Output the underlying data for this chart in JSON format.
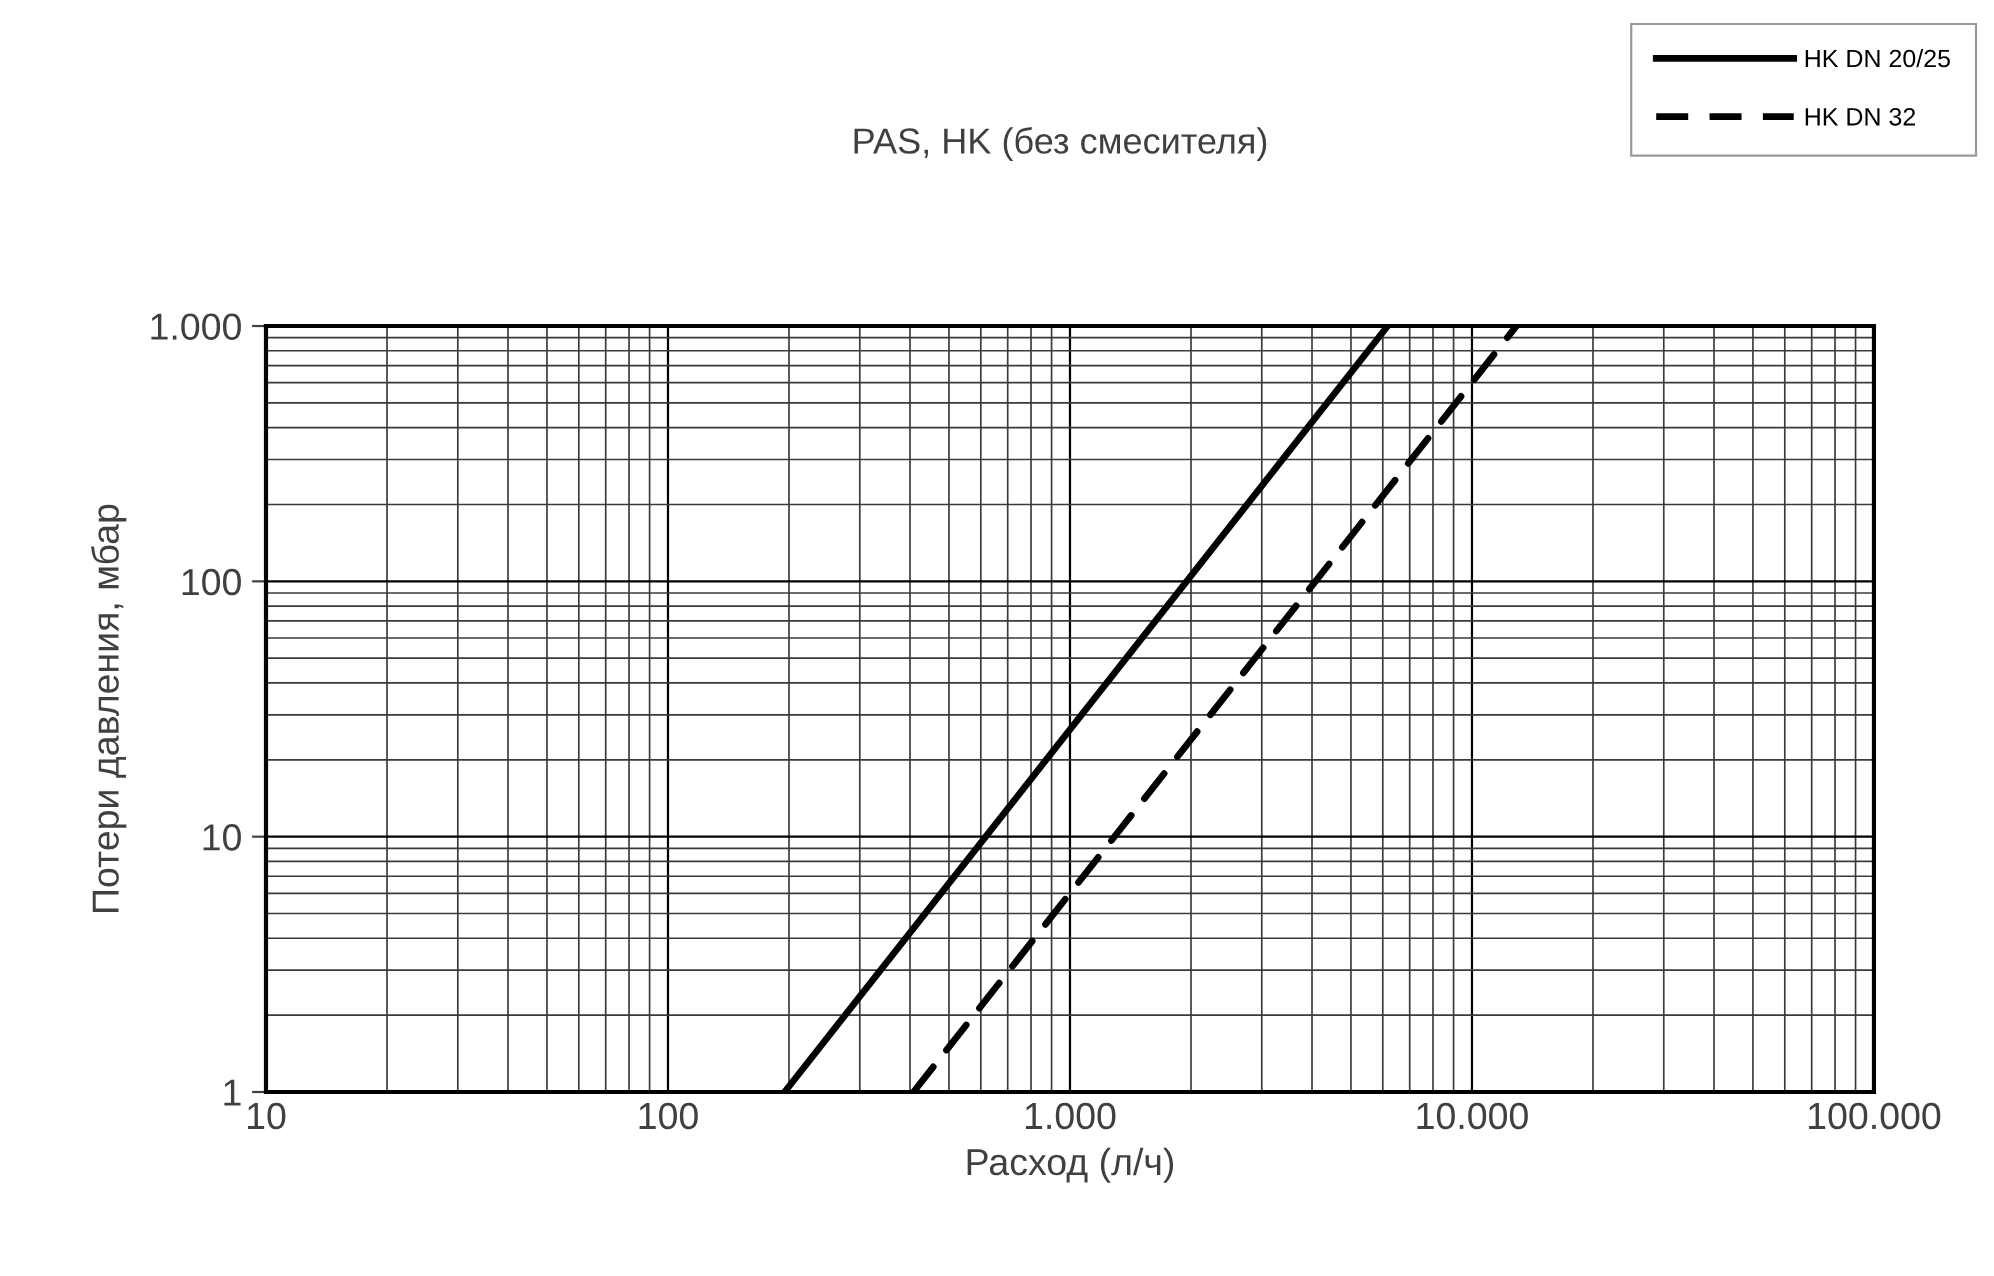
{
  "chart_data": {
    "type": "line",
    "title": "PAS, HK (без смесителя)",
    "xlabel": "Расход (л/ч)",
    "ylabel": "Потери давления, мбар",
    "log": "xy",
    "grid": true,
    "legend": "top right",
    "marker": "none",
    "xlim": [
      10,
      100000
    ],
    "xticks": [
      10,
      100,
      {
        "value": 1000,
        "label": "1.000"
      },
      {
        "value": 10000,
        "label": "10.000"
      },
      {
        "value": 100000,
        "label": "100.000"
      }
    ],
    "ylim": [
      1,
      1000
    ],
    "yticks": [
      1,
      10,
      100,
      {
        "value": 1000,
        "label": "1.000"
      }
    ],
    "series": [
      {
        "name": "HK DN 20/25",
        "color": "#000000",
        "line_style": "solid",
        "x": [
          195,
          6170
        ],
        "values": [
          1,
          1000
        ]
      },
      {
        "name": "HK DN 32",
        "color": "#000000",
        "line_style": "dashed",
        "x": [
          408,
          12900
        ],
        "values": [
          1,
          1000
        ]
      }
    ]
  }
}
